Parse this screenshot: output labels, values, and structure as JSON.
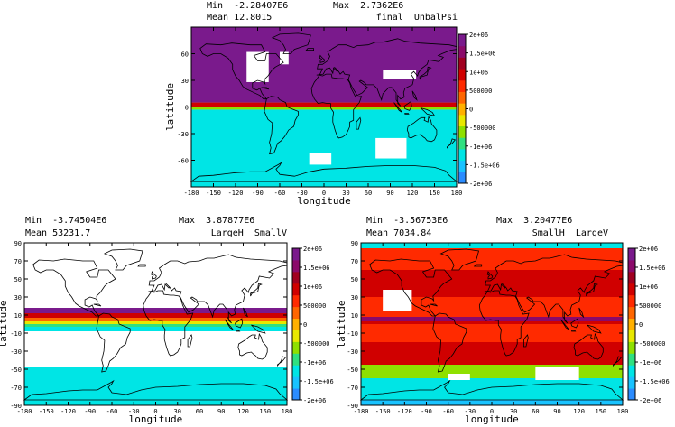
{
  "colors": {
    "scale": [
      "#2b8cff",
      "#19c3ff",
      "#00e5e5",
      "#30e080",
      "#8fe000",
      "#e8e800",
      "#ffb000",
      "#ff6600",
      "#ff2a00",
      "#d00000",
      "#a00020",
      "#8b0a6a",
      "#7a1a8c"
    ],
    "continent_outline": "#000000",
    "missing": "#ffffff"
  },
  "chart_data": [
    {
      "type": "heatmap",
      "stats": {
        "min": "Min  -2.28407E6",
        "max": "Max  2.7362E6",
        "mean": "Mean 12.8015"
      },
      "title": "final  UnbalPsi",
      "xlabel": "longitude",
      "ylabel": "latitude",
      "xlim": [
        -180,
        180
      ],
      "ylim": [
        -90,
        90
      ],
      "x_ticks": [
        "-180",
        "-150",
        "-120",
        "-90",
        "-60",
        "-30",
        "0",
        "30",
        "60",
        "90",
        "120",
        "150",
        "180"
      ],
      "y_ticks": [
        "60",
        "30",
        "0",
        "-30",
        "-60"
      ],
      "colorbar_ticks": [
        "2e+06",
        "1.5e+06",
        "1e+06",
        "500000",
        "0",
        "-500000",
        "-1e+06",
        "-1.5e+06",
        "-2e+06"
      ],
      "colorbar_range": [
        -2000000,
        2000000
      ],
      "field_bands": [
        {
          "from": 90,
          "to": 5,
          "value": 1900000
        },
        {
          "from": 5,
          "to": 0,
          "value": 1000000
        },
        {
          "from": 0,
          "to": -3,
          "value": -600000
        },
        {
          "from": -3,
          "to": -90,
          "value": -1300000
        }
      ],
      "missing_regions": [
        {
          "lon": [
            -105,
            -75
          ],
          "lat": [
            62,
            28
          ]
        },
        {
          "lon": [
            -60,
            -48
          ],
          "lat": [
            62,
            48
          ]
        },
        {
          "lon": [
            80,
            125
          ],
          "lat": [
            42,
            32
          ]
        },
        {
          "lon": [
            -20,
            10
          ],
          "lat": [
            -52,
            -65
          ]
        },
        {
          "lon": [
            70,
            112
          ],
          "lat": [
            -35,
            -58
          ]
        }
      ]
    },
    {
      "type": "heatmap",
      "stats": {
        "min": "Min  -3.74504E6",
        "max": "Max  3.87877E6",
        "mean": "Mean 53231.7"
      },
      "title": "LargeH  SmallV",
      "xlabel": "longitude",
      "ylabel": "latitude",
      "xlim": [
        -180,
        180
      ],
      "ylim": [
        -90,
        90
      ],
      "x_ticks": [
        "-180",
        "-150",
        "-120",
        "-90",
        "-60",
        "-30",
        "0",
        "30",
        "60",
        "90",
        "120",
        "150",
        "180"
      ],
      "y_ticks": [
        "90",
        "70",
        "50",
        "30",
        "10",
        "-10",
        "-30",
        "-50",
        "-70",
        "-90"
      ],
      "colorbar_ticks": [
        "2e+06",
        "1.5e+06",
        "1e+06",
        "500000",
        "0",
        "-500000",
        "-1e+06",
        "-1.5e+06",
        "-2e+06"
      ],
      "colorbar_range": [
        -2000000,
        2000000
      ],
      "field_bands": [
        {
          "from": 90,
          "to": 18,
          "value": null
        },
        {
          "from": 18,
          "to": 12,
          "value": 1900000
        },
        {
          "from": 12,
          "to": 7,
          "value": 1100000
        },
        {
          "from": 7,
          "to": 3,
          "value": 400000
        },
        {
          "from": 3,
          "to": 0,
          "value": -200000
        },
        {
          "from": 0,
          "to": -3,
          "value": -900000
        },
        {
          "from": -3,
          "to": -8,
          "value": -1400000
        },
        {
          "from": -8,
          "to": -48,
          "value": null
        },
        {
          "from": -48,
          "to": -90,
          "value": -1500000
        }
      ],
      "missing_regions": []
    },
    {
      "type": "heatmap",
      "stats": {
        "min": "Min  -3.56753E6",
        "max": "Max  3.20477E6",
        "mean": "Mean 7034.84"
      },
      "title": "SmallH  LargeV",
      "xlabel": "longitude",
      "ylabel": "latitude",
      "xlim": [
        -180,
        180
      ],
      "ylim": [
        -90,
        90
      ],
      "x_ticks": [
        "-180",
        "-150",
        "-120",
        "-90",
        "-60",
        "-30",
        "0",
        "30",
        "60",
        "90",
        "120",
        "150",
        "180"
      ],
      "y_ticks": [
        "90",
        "70",
        "50",
        "30",
        "10",
        "-10",
        "-30",
        "-50",
        "-70",
        "-90"
      ],
      "colorbar_ticks": [
        "2e+06",
        "1.5e+06",
        "1e+06",
        "500000",
        "0",
        "-500000",
        "-1e+06",
        "-1.5e+06",
        "-2e+06"
      ],
      "colorbar_range": [
        -2000000,
        2000000
      ],
      "field_bands": [
        {
          "from": 90,
          "to": 84,
          "value": -1300000
        },
        {
          "from": 84,
          "to": 60,
          "value": 700000
        },
        {
          "from": 60,
          "to": 30,
          "value": 1000000
        },
        {
          "from": 30,
          "to": 8,
          "value": 600000
        },
        {
          "from": 8,
          "to": 3,
          "value": 1500000
        },
        {
          "from": 3,
          "to": 0,
          "value": 900000
        },
        {
          "from": 0,
          "to": -20,
          "value": 500000
        },
        {
          "from": -20,
          "to": -45,
          "value": 900000
        },
        {
          "from": -45,
          "to": -60,
          "value": -700000
        },
        {
          "from": -60,
          "to": -84,
          "value": -1200000
        },
        {
          "from": -84,
          "to": -90,
          "value": -1800000
        }
      ],
      "missing_regions": [
        {
          "lon": [
            -150,
            -110
          ],
          "lat": [
            38,
            15
          ]
        },
        {
          "lon": [
            -60,
            -30
          ],
          "lat": [
            -55,
            -62
          ]
        },
        {
          "lon": [
            60,
            120
          ],
          "lat": [
            -48,
            -62
          ]
        }
      ]
    }
  ]
}
